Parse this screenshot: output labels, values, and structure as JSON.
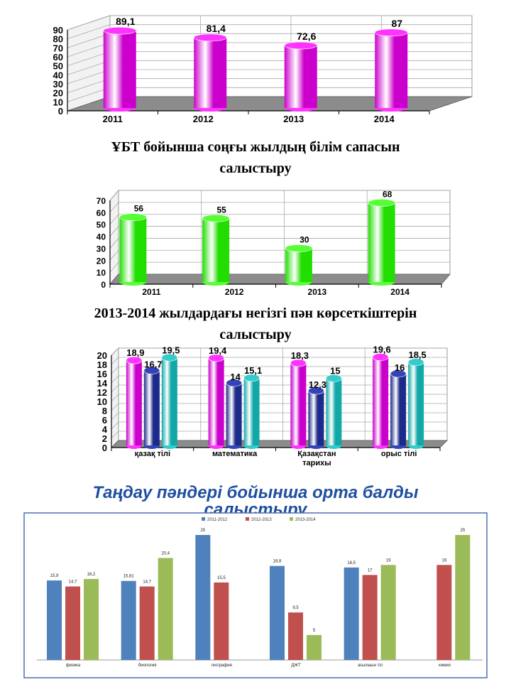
{
  "heading1": [
    "ҰБТ бойынша соңғы  жылдың білім сапасын",
    "салыстыру"
  ],
  "heading2": [
    "2013-2014 жылдардағы негізгі пән  көрсеткіштерін",
    "салыстыру"
  ],
  "heading3": [
    "Таңдау пәндері бойынша орта балды",
    "салыстыру"
  ],
  "colors": {
    "magenta": "#cc00cc",
    "green": "#22dd00",
    "navy": "#1c2a8a",
    "teal": "#12a8a8",
    "pink": "#ff33ff",
    "c4_blue": "#4f81bd",
    "c4_red": "#c0504d",
    "c4_green": "#9bbb59",
    "title_blue": "#1f4fa0"
  },
  "chart_data": [
    {
      "type": "bar",
      "categories": [
        "2011",
        "2012",
        "2013",
        "2014"
      ],
      "values": [
        89.1,
        81.4,
        72.6,
        87
      ],
      "value_labels": [
        "89,1",
        "81,4",
        "72,6",
        "87"
      ],
      "ylim": [
        0,
        90
      ],
      "yticks": [
        0,
        10,
        20,
        30,
        40,
        50,
        60,
        70,
        80,
        90
      ],
      "grid": true
    },
    {
      "type": "bar",
      "categories": [
        "2011",
        "2012",
        "2013",
        "2014"
      ],
      "values": [
        56,
        55,
        30,
        68
      ],
      "value_labels": [
        "56",
        "55",
        "30",
        "68"
      ],
      "ylim": [
        0,
        70
      ],
      "yticks": [
        0,
        10,
        20,
        30,
        40,
        50,
        60,
        70
      ],
      "grid": true
    },
    {
      "type": "bar",
      "categories": [
        "қазақ тілі",
        "математика",
        "Қазақстан\nтарихы",
        "орыс тілі"
      ],
      "series": [
        {
          "values": [
            18.9,
            19.4,
            18.3,
            19.6
          ],
          "labels": [
            "18,9",
            "19,4",
            "18,3",
            "19,6"
          ]
        },
        {
          "values": [
            16.7,
            14,
            12.3,
            16
          ],
          "labels": [
            "16,7",
            "14",
            "12,3",
            "16"
          ]
        },
        {
          "values": [
            19.5,
            15.1,
            15,
            18.5
          ],
          "labels": [
            "19,5",
            "15,1",
            "15",
            "18,5"
          ]
        }
      ],
      "ylim": [
        0,
        20
      ],
      "yticks": [
        0,
        2,
        4,
        6,
        8,
        10,
        12,
        14,
        16,
        18,
        20
      ],
      "grid": true
    },
    {
      "type": "bar",
      "categories": [
        "физика",
        "биология",
        "география",
        "ДЖТ",
        "ағылшын тіл",
        "химия"
      ],
      "series": [
        {
          "name": "2011-2012",
          "values": [
            15.9,
            15.81,
            25,
            18.8,
            18.5,
            null
          ],
          "labels": [
            "15,9",
            "15,81",
            "25",
            "18,8",
            "18,5",
            ""
          ]
        },
        {
          "name": "2012-2013",
          "values": [
            14.7,
            14.7,
            15.5,
            9.5,
            17,
            19
          ],
          "labels": [
            "14,7",
            "14,7",
            "15,5",
            "9,5",
            "17",
            "19"
          ]
        },
        {
          "name": "2013-2014",
          "values": [
            16.2,
            20.4,
            null,
            5,
            19,
            25
          ],
          "labels": [
            "16,2",
            "20,4",
            "",
            "5",
            "19",
            "25"
          ]
        }
      ],
      "ylim": [
        0,
        26
      ],
      "legend": "top",
      "grid": false
    }
  ]
}
